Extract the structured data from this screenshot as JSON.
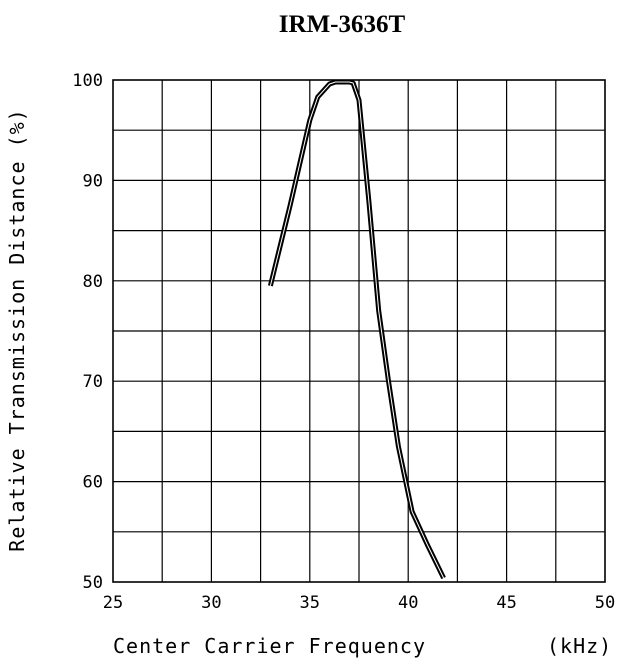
{
  "chart_data": {
    "type": "line",
    "title": "IRM-3636T",
    "xlabel": "Center Carrier Frequency",
    "xunit": "(kHz)",
    "ylabel": "Relative Transmission Distance (%)",
    "xlim": [
      25,
      50
    ],
    "ylim": [
      50,
      100
    ],
    "xticks": [
      25,
      30,
      35,
      40,
      45,
      50
    ],
    "yticks": [
      50,
      60,
      70,
      80,
      90,
      100
    ],
    "grid": true,
    "series": [
      {
        "x": [
          33.0,
          34.0,
          35.0,
          35.4,
          36.0,
          36.3,
          36.5,
          37.0,
          37.2,
          37.5,
          38.0,
          38.5,
          39.0,
          39.5,
          40.2,
          41.0,
          41.8
        ],
        "y": [
          79.5,
          87.5,
          96.0,
          98.3,
          99.6,
          99.8,
          99.8,
          99.8,
          99.7,
          98.0,
          88.0,
          77.0,
          70.0,
          63.5,
          57.0,
          53.6,
          50.4
        ]
      }
    ]
  }
}
